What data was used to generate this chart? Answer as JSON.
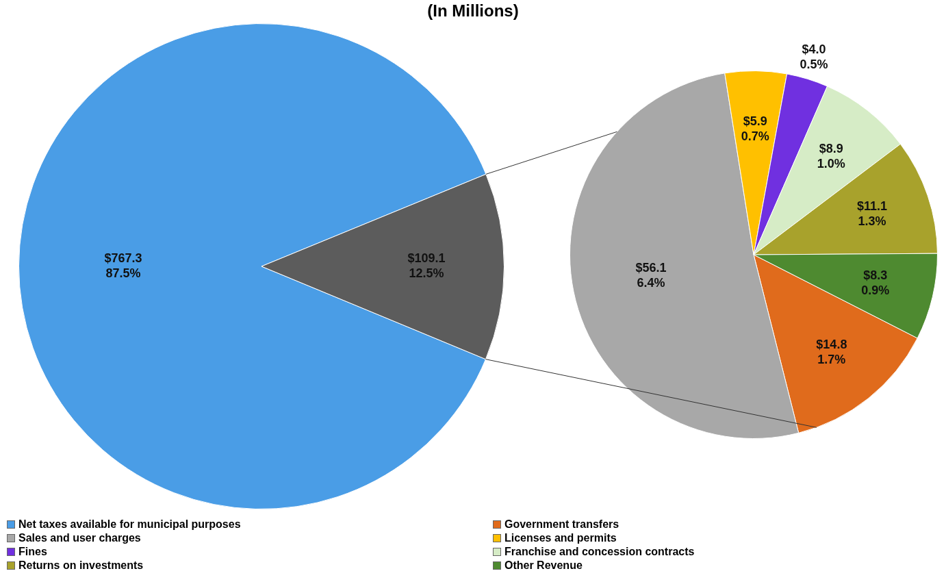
{
  "chart_data": [
    {
      "type": "pie",
      "title": "(In Millions)",
      "legend": "bottom",
      "categories": [
        "Net taxes available for municipal purposes",
        null
      ],
      "values": [
        767.3,
        109.1
      ],
      "colors": [
        "#4a9de6",
        "#5c5c5c"
      ],
      "value_labels": [
        "$767.3\n87.5%",
        "$109.1\n12.5%"
      ]
    },
    {
      "type": "pie",
      "legend": "bottom",
      "categories": [
        "Government transfers",
        "Sales and user charges",
        "Licenses and permits",
        "Fines",
        "Franchise and concession contracts",
        "Returns on investments",
        "Other Revenue"
      ],
      "values": [
        14.8,
        56.1,
        5.9,
        4.0,
        8.9,
        11.1,
        8.3
      ],
      "colors": [
        "#e06b1c",
        "#a8a8a8",
        "#ffc000",
        "#7030e0",
        "#d6ecc6",
        "#a8a22c",
        "#4e8a30"
      ],
      "value_labels": [
        "$14.8\n1.7%",
        "$56.1\n6.4%",
        "$5.9\n0.7%",
        "$4.0\n0.5%",
        "$8.9\n1.0%",
        "$11.1\n1.3%",
        "$8.3\n0.9%"
      ]
    }
  ]
}
